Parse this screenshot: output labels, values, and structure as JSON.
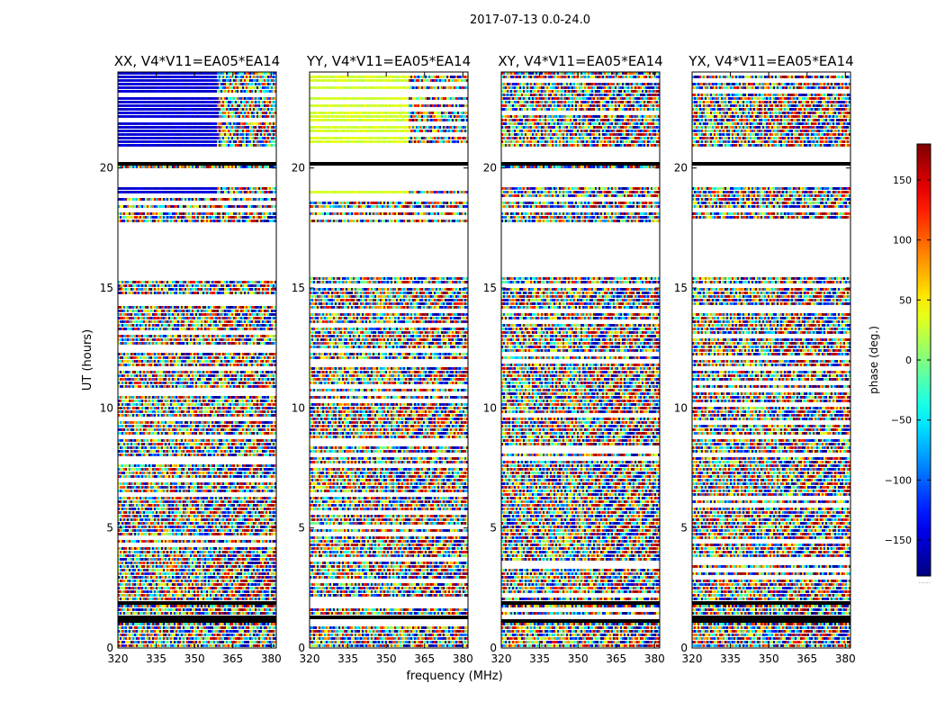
{
  "figure_title": "2017-07-13 0.0-24.0",
  "chart_data": {
    "type": "heatmap",
    "title": "2017-07-13 0.0-24.0",
    "xlabel": "frequency (MHz)",
    "ylabel": "UT (hours)",
    "xlim": [
      320,
      382
    ],
    "ylim": [
      0,
      24
    ],
    "xticks": [
      320,
      335,
      350,
      365,
      380
    ],
    "yticks": [
      0,
      5,
      10,
      15,
      20
    ],
    "colormap": "jet",
    "colorbar": {
      "label": "phase (deg.)",
      "range": [
        -180,
        180
      ],
      "ticks": [
        150,
        100,
        50,
        0,
        -50,
        -100,
        -150
      ],
      "tick_labels": [
        "150",
        "100",
        "50",
        "0",
        "−50",
        "−100",
        "−150"
      ],
      "footer": "......"
    },
    "panels": [
      {
        "title": "XX, V4*V11=EA05*EA14",
        "baseline": "blue",
        "phase_deg": -150
      },
      {
        "title": "YY, V4*V11=EA05*EA14",
        "baseline": "yellow-green",
        "phase_deg": 30
      },
      {
        "title": "XY, V4*V11=EA05*EA14",
        "baseline": "noise",
        "phase_deg": null
      },
      {
        "title": "YX, V4*V11=EA05*EA14",
        "baseline": "noise",
        "phase_deg": null
      }
    ],
    "flagged_ut_ranges": [
      [
        15.5,
        17.7
      ],
      [
        19.2,
        19.9
      ],
      [
        18.1,
        18.3
      ],
      [
        20.2,
        20.8
      ]
    ],
    "dense_flag_ut_ranges": [
      [
        1.0,
        1.3
      ],
      [
        1.8,
        2.0
      ],
      [
        20.1,
        20.35
      ]
    ]
  },
  "colors": {
    "flag": "#000000",
    "axes": "#000000",
    "background": "#ffffff"
  }
}
